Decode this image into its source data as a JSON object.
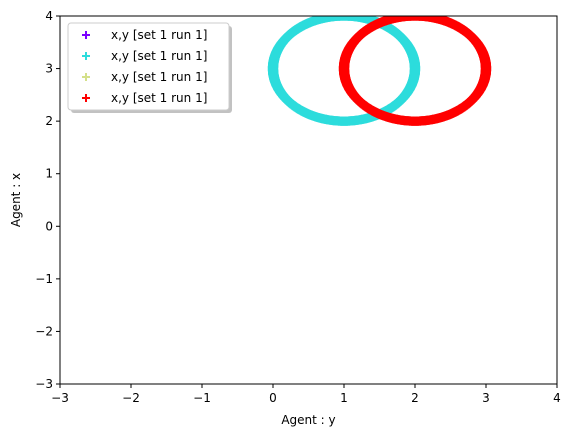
{
  "chart_data": {
    "type": "scatter",
    "xlabel": "Agent : y",
    "ylabel": "Agent : x",
    "xlim": [
      -3,
      4
    ],
    "ylim": [
      -3,
      4
    ],
    "xticks": [
      "−3",
      "−2",
      "−1",
      "0",
      "1",
      "2",
      "3",
      "4"
    ],
    "yticks": [
      "−3",
      "−2",
      "−1",
      "0",
      "1",
      "2",
      "3",
      "4"
    ],
    "grid": false,
    "marker": "+",
    "legend_position": "upper-left",
    "series": [
      {
        "name": "x,y [set 1 run 1]",
        "color": "#7b00ff",
        "shape": "none"
      },
      {
        "name": "x,y [set 1 run 1]",
        "color": "#2ddcdc",
        "shape": "circle",
        "center": [
          1,
          3
        ],
        "radius": 1
      },
      {
        "name": "x,y [set 1 run 1]",
        "color": "#d4e08a",
        "shape": "none"
      },
      {
        "name": "x,y [set 1 run 1]",
        "color": "#ff0000",
        "shape": "circle",
        "center": [
          2,
          3
        ],
        "radius": 1
      }
    ]
  }
}
